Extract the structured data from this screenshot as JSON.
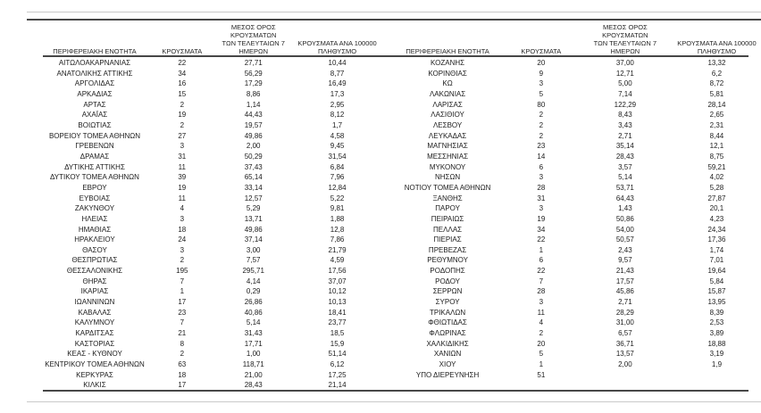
{
  "table": {
    "headers": {
      "region": "ΠΕΡΙΦΕΡΕΙΑΚΗ ΕΝΟΤΗΤΑ",
      "cases": "ΚΡΟΥΣΜΑΤΑ",
      "avg7": "ΜΕΣΟΣ ΟΡΟΣ ΚΡΟΥΣΜΑΤΩΝ\nΤΩΝ ΤΕΛΕΥΤΑΙΩΝ 7\nΗΜΕΡΩΝ",
      "per100k": "ΚΡΟΥΣΜΑΤΑ ΑΝΑ 100000\nΠΛΗΘΥΣΜΟ"
    },
    "left_rows": [
      [
        "ΑΙΤΩΛΟΑΚΑΡΝΑΝΙΑΣ",
        "22",
        "27,71",
        "10,44"
      ],
      [
        "ΑΝΑΤΟΛΙΚΗΣ ΑΤΤΙΚΗΣ",
        "34",
        "56,29",
        "8,77"
      ],
      [
        "ΑΡΓΟΛΙΔΑΣ",
        "16",
        "17,29",
        "16,49"
      ],
      [
        "ΑΡΚΑΔΙΑΣ",
        "15",
        "8,86",
        "17,3"
      ],
      [
        "ΑΡΤΑΣ",
        "2",
        "1,14",
        "2,95"
      ],
      [
        "ΑΧΑΪΑΣ",
        "19",
        "44,43",
        "8,12"
      ],
      [
        "ΒΟΙΩΤΙΑΣ",
        "2",
        "19,57",
        "1,7"
      ],
      [
        "ΒΟΡΕΙΟΥ ΤΟΜΕΑ ΑΘΗΝΩΝ",
        "27",
        "49,86",
        "4,58"
      ],
      [
        "ΓΡΕΒΕΝΩΝ",
        "3",
        "2,00",
        "9,45"
      ],
      [
        "ΔΡΑΜΑΣ",
        "31",
        "50,29",
        "31,54"
      ],
      [
        "ΔΥΤΙΚΗΣ ΑΤΤΙΚΗΣ",
        "11",
        "37,43",
        "6,84"
      ],
      [
        "ΔΥΤΙΚΟΥ ΤΟΜΕΑ ΑΘΗΝΩΝ",
        "39",
        "65,14",
        "7,96"
      ],
      [
        "ΕΒΡΟΥ",
        "19",
        "33,14",
        "12,84"
      ],
      [
        "ΕΥΒΟΙΑΣ",
        "11",
        "12,57",
        "5,22"
      ],
      [
        "ΖΑΚΥΝΘΟΥ",
        "4",
        "5,29",
        "9,81"
      ],
      [
        "ΗΛΕΙΑΣ",
        "3",
        "13,71",
        "1,88"
      ],
      [
        "ΗΜΑΘΙΑΣ",
        "18",
        "49,86",
        "12,8"
      ],
      [
        "ΗΡΑΚΛΕΙΟΥ",
        "24",
        "37,14",
        "7,86"
      ],
      [
        "ΘΑΣΟΥ",
        "3",
        "3,00",
        "21,79"
      ],
      [
        "ΘΕΣΠΡΩΤΙΑΣ",
        "2",
        "7,57",
        "4,59"
      ],
      [
        "ΘΕΣΣΑΛΟΝΙΚΗΣ",
        "195",
        "295,71",
        "17,56"
      ],
      [
        "ΘΗΡΑΣ",
        "7",
        "4,14",
        "37,07"
      ],
      [
        "ΙΚΑΡΙΑΣ",
        "1",
        "0,29",
        "10,12"
      ],
      [
        "ΙΩΑΝΝΙΝΩΝ",
        "17",
        "26,86",
        "10,13"
      ],
      [
        "ΚΑΒΑΛΑΣ",
        "23",
        "40,86",
        "18,41"
      ],
      [
        "ΚΑΛΥΜΝΟΥ",
        "7",
        "5,14",
        "23,77"
      ],
      [
        "ΚΑΡΔΙΤΣΑΣ",
        "21",
        "31,43",
        "18,5"
      ],
      [
        "ΚΑΣΤΟΡΙΑΣ",
        "8",
        "17,71",
        "15,9"
      ],
      [
        "ΚΕΑΣ - ΚΥΘΝΟΥ",
        "2",
        "1,00",
        "51,14"
      ],
      [
        "ΚΕΝΤΡΙΚΟΥ ΤΟΜΕΑ ΑΘΗΝΩΝ",
        "63",
        "118,71",
        "6,12"
      ],
      [
        "ΚΕΡΚΥΡΑΣ",
        "18",
        "21,00",
        "17,25"
      ],
      [
        "ΚΙΛΚΙΣ",
        "17",
        "28,43",
        "21,14"
      ]
    ],
    "right_rows": [
      [
        "ΚΟΖΑΝΗΣ",
        "20",
        "37,00",
        "13,32"
      ],
      [
        "ΚΟΡΙΝΘΙΑΣ",
        "9",
        "12,71",
        "6,2"
      ],
      [
        "ΚΩ",
        "3",
        "5,00",
        "8,72"
      ],
      [
        "ΛΑΚΩΝΙΑΣ",
        "5",
        "7,14",
        "5,81"
      ],
      [
        "ΛΑΡΙΣΑΣ",
        "80",
        "122,29",
        "28,14"
      ],
      [
        "ΛΑΣΙΘΙΟΥ",
        "2",
        "8,43",
        "2,65"
      ],
      [
        "ΛΕΣΒΟΥ",
        "2",
        "3,43",
        "2,31"
      ],
      [
        "ΛΕΥΚΑΔΑΣ",
        "2",
        "2,71",
        "8,44"
      ],
      [
        "ΜΑΓΝΗΣΙΑΣ",
        "23",
        "35,14",
        "12,1"
      ],
      [
        "ΜΕΣΣΗΝΙΑΣ",
        "14",
        "28,43",
        "8,75"
      ],
      [
        "ΜΥΚΟΝΟΥ",
        "6",
        "3,57",
        "59,21"
      ],
      [
        "ΝΗΣΩΝ",
        "3",
        "5,14",
        "4,02"
      ],
      [
        "ΝΟΤΙΟΥ ΤΟΜΕΑ ΑΘΗΝΩΝ",
        "28",
        "53,71",
        "5,28"
      ],
      [
        "ΞΑΝΘΗΣ",
        "31",
        "64,43",
        "27,87"
      ],
      [
        "ΠΑΡΟΥ",
        "3",
        "1,43",
        "20,1"
      ],
      [
        "ΠΕΙΡΑΙΩΣ",
        "19",
        "50,86",
        "4,23"
      ],
      [
        "ΠΕΛΛΑΣ",
        "34",
        "54,00",
        "24,34"
      ],
      [
        "ΠΙΕΡΙΑΣ",
        "22",
        "50,57",
        "17,36"
      ],
      [
        "ΠΡΕΒΕΖΑΣ",
        "1",
        "2,43",
        "1,74"
      ],
      [
        "ΡΕΘΥΜΝΟΥ",
        "6",
        "9,57",
        "7,01"
      ],
      [
        "ΡΟΔΟΠΗΣ",
        "22",
        "21,43",
        "19,64"
      ],
      [
        "ΡΟΔΟΥ",
        "7",
        "17,57",
        "5,84"
      ],
      [
        "ΣΕΡΡΩΝ",
        "28",
        "45,86",
        "15,87"
      ],
      [
        "ΣΥΡΟΥ",
        "3",
        "2,71",
        "13,95"
      ],
      [
        "ΤΡΙΚΑΛΩΝ",
        "11",
        "28,29",
        "8,39"
      ],
      [
        "ΦΘΙΩΤΙΔΑΣ",
        "4",
        "31,00",
        "2,53"
      ],
      [
        "ΦΛΩΡΙΝΑΣ",
        "2",
        "6,57",
        "3,89"
      ],
      [
        "ΧΑΛΚΙΔΙΚΗΣ",
        "20",
        "36,71",
        "18,88"
      ],
      [
        "ΧΑΝΙΩΝ",
        "5",
        "13,57",
        "3,19"
      ],
      [
        "ΧΙΟΥ",
        "1",
        "2,00",
        "1,9"
      ],
      [
        "ΥΠΟ ΔΙΕΡΕΥΝΗΣΗ",
        "51",
        "",
        ""
      ]
    ]
  }
}
